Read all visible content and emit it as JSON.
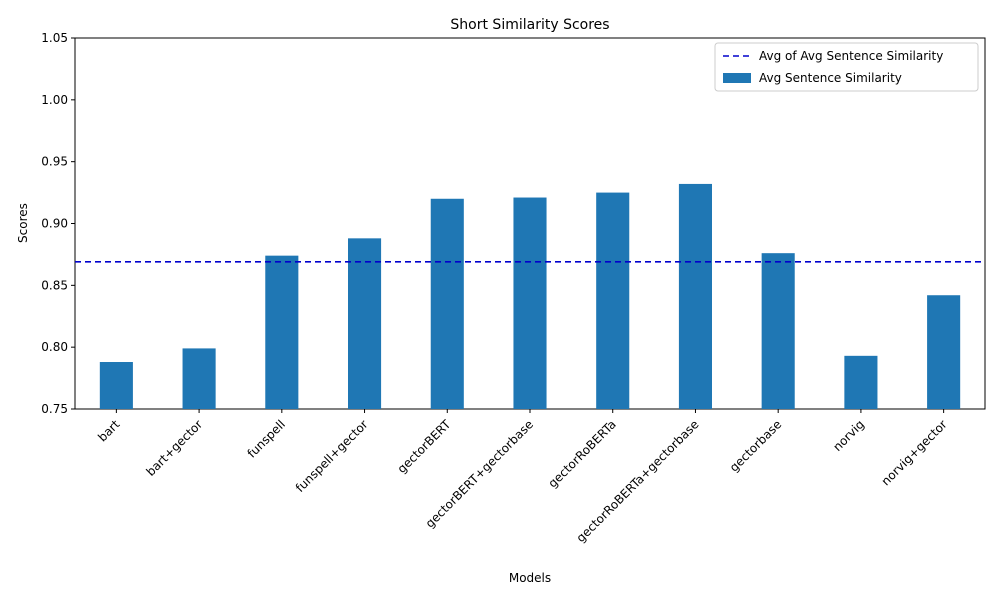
{
  "chart_data": {
    "type": "bar",
    "title": "Short Similarity Scores",
    "xlabel": "Models",
    "ylabel": "Scores",
    "ylim": [
      0.75,
      1.05
    ],
    "yticks": [
      "0.75",
      "0.80",
      "0.85",
      "0.90",
      "0.95",
      "1.00",
      "1.05"
    ],
    "categories": [
      "bart",
      "bart+gector",
      "funspell",
      "funspell+gector",
      "gectorBERT",
      "gectorBERT+gectorbase",
      "gectorRoBERTa",
      "gectorRoBERTa+gectorbase",
      "gectorbase",
      "norvig",
      "norvig+gector"
    ],
    "series": [
      {
        "name": "Avg Sentence Similarity",
        "values": [
          0.788,
          0.799,
          0.874,
          0.888,
          0.92,
          0.921,
          0.925,
          0.932,
          0.876,
          0.793,
          0.842
        ],
        "color": "#1f77b4"
      }
    ],
    "reference_line": {
      "name": "Avg of Avg Sentence Similarity",
      "value": 0.869,
      "color": "#0000cc",
      "style": "dashed"
    },
    "legend_position": "top-right",
    "grid": false
  }
}
